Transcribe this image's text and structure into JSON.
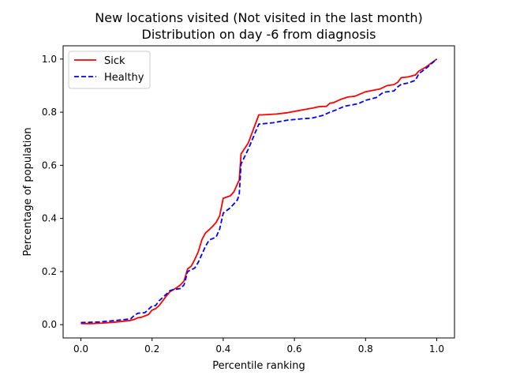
{
  "chart_data": {
    "type": "line",
    "title": "New locations visited (Not visited in the last month)",
    "subtitle": "Distribution on day -6 from diagnosis",
    "xlabel": "Percentile ranking",
    "ylabel": "Percentage of population",
    "xlim": [
      -0.05,
      1.05
    ],
    "ylim": [
      -0.05,
      1.05
    ],
    "xticks": [
      0.0,
      0.2,
      0.4,
      0.6,
      0.8,
      1.0
    ],
    "xtick_labels": [
      "0.0",
      "0.2",
      "0.4",
      "0.6",
      "0.8",
      "1.0"
    ],
    "yticks": [
      0.0,
      0.2,
      0.4,
      0.6,
      0.8,
      1.0
    ],
    "ytick_labels": [
      "0.0",
      "0.2",
      "0.4",
      "0.6",
      "0.8",
      "1.0"
    ],
    "grid": false,
    "legend_position": "upper-left",
    "series": [
      {
        "name": "Sick",
        "color": "#ff0000",
        "style": "solid",
        "points": [
          [
            0.0,
            0.004
          ],
          [
            0.03,
            0.004
          ],
          [
            0.06,
            0.006
          ],
          [
            0.1,
            0.01
          ],
          [
            0.14,
            0.016
          ],
          [
            0.15,
            0.02
          ],
          [
            0.16,
            0.026
          ],
          [
            0.17,
            0.028
          ],
          [
            0.19,
            0.038
          ],
          [
            0.2,
            0.055
          ],
          [
            0.21,
            0.06
          ],
          [
            0.22,
            0.072
          ],
          [
            0.24,
            0.108
          ],
          [
            0.25,
            0.124
          ],
          [
            0.26,
            0.132
          ],
          [
            0.27,
            0.14
          ],
          [
            0.28,
            0.15
          ],
          [
            0.29,
            0.165
          ],
          [
            0.3,
            0.21
          ],
          [
            0.31,
            0.22
          ],
          [
            0.32,
            0.245
          ],
          [
            0.33,
            0.275
          ],
          [
            0.34,
            0.32
          ],
          [
            0.35,
            0.345
          ],
          [
            0.36,
            0.357
          ],
          [
            0.37,
            0.37
          ],
          [
            0.38,
            0.385
          ],
          [
            0.39,
            0.41
          ],
          [
            0.4,
            0.476
          ],
          [
            0.42,
            0.485
          ],
          [
            0.43,
            0.5
          ],
          [
            0.44,
            0.53
          ],
          [
            0.445,
            0.545
          ],
          [
            0.45,
            0.643
          ],
          [
            0.47,
            0.683
          ],
          [
            0.5,
            0.79
          ],
          [
            0.51,
            0.79
          ],
          [
            0.55,
            0.793
          ],
          [
            0.58,
            0.798
          ],
          [
            0.62,
            0.808
          ],
          [
            0.65,
            0.815
          ],
          [
            0.67,
            0.821
          ],
          [
            0.69,
            0.822
          ],
          [
            0.7,
            0.834
          ],
          [
            0.71,
            0.836
          ],
          [
            0.73,
            0.848
          ],
          [
            0.75,
            0.857
          ],
          [
            0.77,
            0.86
          ],
          [
            0.8,
            0.877
          ],
          [
            0.84,
            0.887
          ],
          [
            0.86,
            0.9
          ],
          [
            0.88,
            0.904
          ],
          [
            0.89,
            0.912
          ],
          [
            0.9,
            0.93
          ],
          [
            0.92,
            0.933
          ],
          [
            0.94,
            0.94
          ],
          [
            0.95,
            0.955
          ],
          [
            0.97,
            0.97
          ],
          [
            1.0,
            1.0
          ]
        ]
      },
      {
        "name": "Healthy",
        "color": "#0000ff",
        "style": "dashed",
        "points": [
          [
            0.0,
            0.008
          ],
          [
            0.05,
            0.01
          ],
          [
            0.1,
            0.016
          ],
          [
            0.14,
            0.022
          ],
          [
            0.15,
            0.035
          ],
          [
            0.16,
            0.043
          ],
          [
            0.18,
            0.045
          ],
          [
            0.19,
            0.058
          ],
          [
            0.2,
            0.07
          ],
          [
            0.21,
            0.072
          ],
          [
            0.22,
            0.09
          ],
          [
            0.24,
            0.115
          ],
          [
            0.25,
            0.128
          ],
          [
            0.26,
            0.132
          ],
          [
            0.28,
            0.136
          ],
          [
            0.29,
            0.15
          ],
          [
            0.3,
            0.2
          ],
          [
            0.32,
            0.213
          ],
          [
            0.33,
            0.235
          ],
          [
            0.34,
            0.265
          ],
          [
            0.35,
            0.295
          ],
          [
            0.36,
            0.318
          ],
          [
            0.38,
            0.33
          ],
          [
            0.39,
            0.36
          ],
          [
            0.4,
            0.42
          ],
          [
            0.42,
            0.44
          ],
          [
            0.44,
            0.47
          ],
          [
            0.445,
            0.49
          ],
          [
            0.45,
            0.605
          ],
          [
            0.47,
            0.66
          ],
          [
            0.5,
            0.755
          ],
          [
            0.54,
            0.76
          ],
          [
            0.58,
            0.77
          ],
          [
            0.62,
            0.775
          ],
          [
            0.65,
            0.778
          ],
          [
            0.68,
            0.788
          ],
          [
            0.7,
            0.8
          ],
          [
            0.72,
            0.81
          ],
          [
            0.74,
            0.822
          ],
          [
            0.76,
            0.827
          ],
          [
            0.78,
            0.832
          ],
          [
            0.8,
            0.845
          ],
          [
            0.83,
            0.855
          ],
          [
            0.85,
            0.875
          ],
          [
            0.88,
            0.88
          ],
          [
            0.89,
            0.895
          ],
          [
            0.9,
            0.905
          ],
          [
            0.92,
            0.91
          ],
          [
            0.94,
            0.92
          ],
          [
            0.95,
            0.945
          ],
          [
            0.97,
            0.965
          ],
          [
            1.0,
            1.0
          ]
        ]
      }
    ]
  }
}
